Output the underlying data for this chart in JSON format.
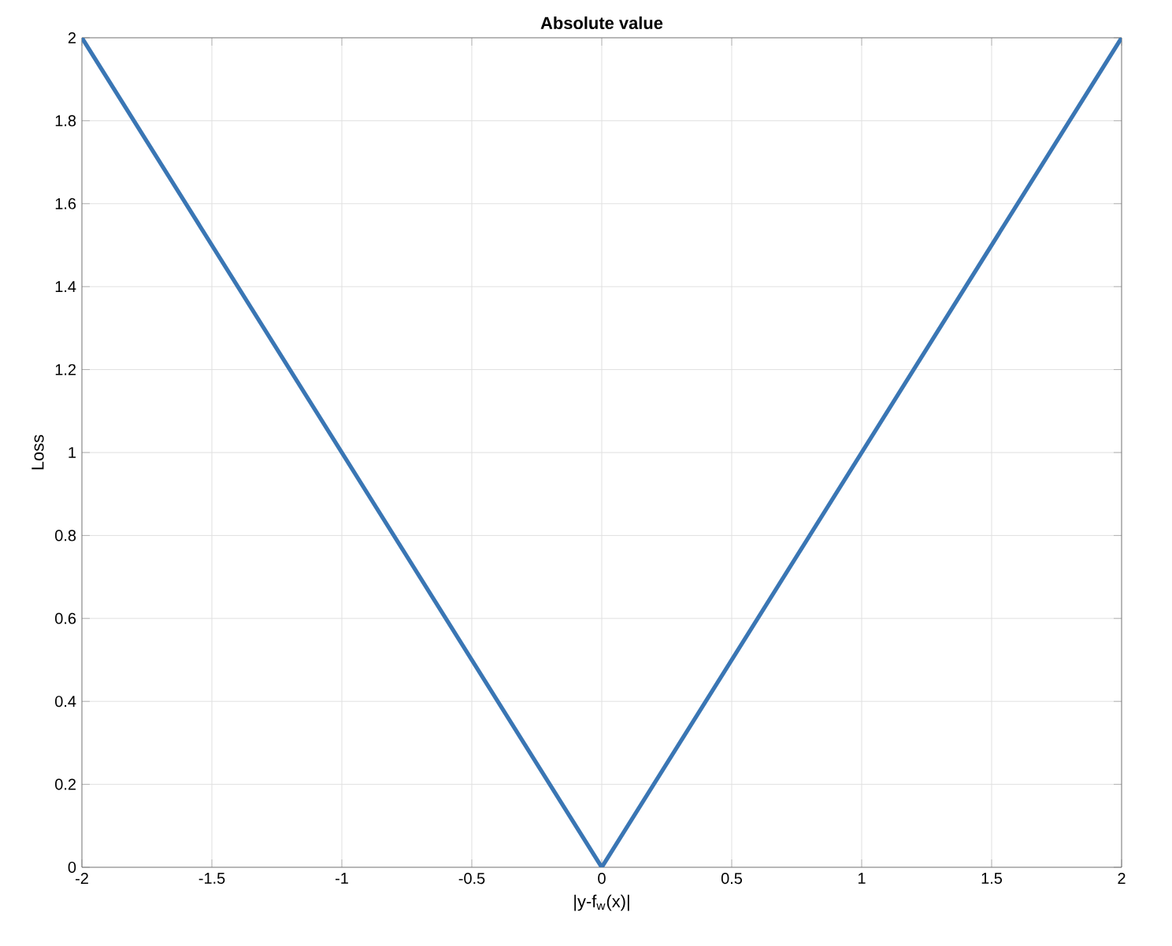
{
  "chart_data": {
    "type": "line",
    "title": "**Absolute value**",
    "xlabel": "|y-f$_{w}$(x)|",
    "ylabel": "Loss",
    "x": [
      -2,
      0,
      2
    ],
    "series": [
      {
        "color": "#3a76b4",
        "values": [
          2,
          0,
          2
        ]
      }
    ],
    "xlim": [
      -2,
      2
    ],
    "ylim": [
      0,
      2
    ],
    "xticks": [
      -2,
      -1.5,
      -1,
      -0.5,
      0,
      0.5,
      1,
      1.5,
      2
    ],
    "yticks": [
      0,
      0.2,
      0.4,
      0.6,
      0.8,
      1,
      1.2,
      1.4,
      1.6,
      1.8,
      2
    ],
    "grid": true,
    "line_style": "solid"
  }
}
